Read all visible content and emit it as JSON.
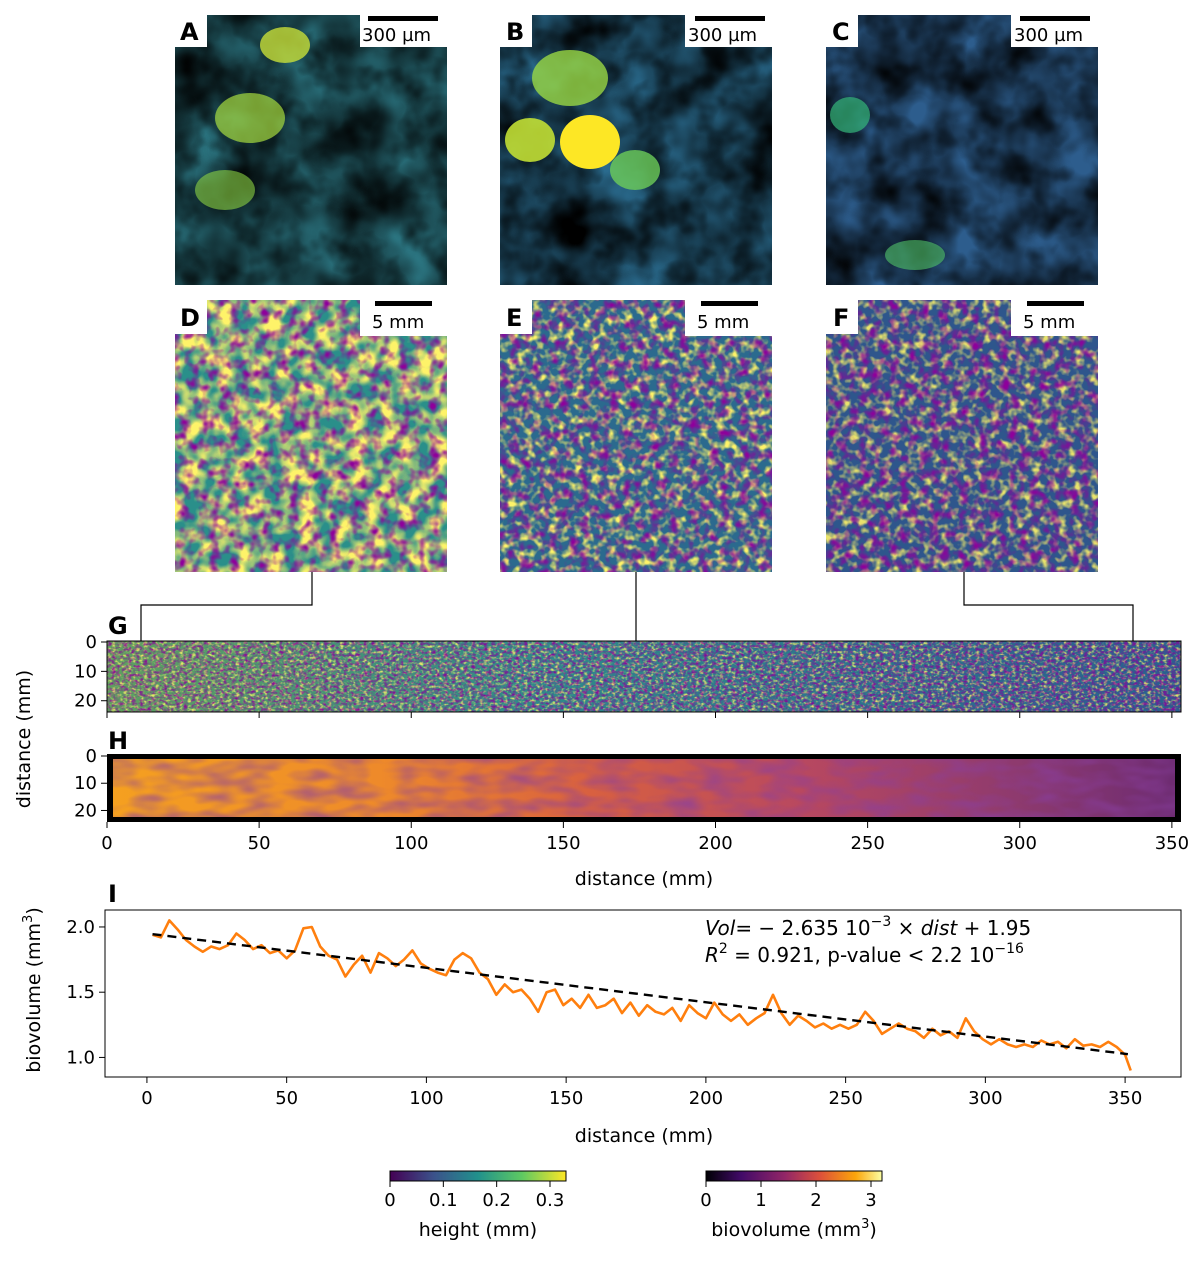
{
  "panels": {
    "A": {
      "label": "A",
      "scalebar": "300 µm"
    },
    "B": {
      "label": "B",
      "scalebar": "300 µm"
    },
    "C": {
      "label": "C",
      "scalebar": "300 µm"
    },
    "D": {
      "label": "D",
      "scalebar": "5 mm"
    },
    "E": {
      "label": "E",
      "scalebar": "5 mm"
    },
    "F": {
      "label": "F",
      "scalebar": "5 mm"
    },
    "G": {
      "label": "G"
    },
    "H": {
      "label": "H"
    },
    "I": {
      "label": "I"
    }
  },
  "strips": {
    "ylabel": "distance (mm)",
    "xlabel": "distance (mm)",
    "yticks": [
      "0",
      "10",
      "20"
    ],
    "xticks": [
      "0",
      "50",
      "100",
      "150",
      "200",
      "250",
      "300",
      "350"
    ]
  },
  "colorbars": {
    "height": {
      "label": "height (mm)",
      "ticks": [
        "0",
        "0.1",
        "0.2",
        "0.3"
      ],
      "range": [
        0,
        0.33
      ]
    },
    "biovolume": {
      "label": "biovolume (mm",
      "label_sup": "3",
      "label_end": ")",
      "ticks": [
        "0",
        "1",
        "2",
        "3"
      ],
      "range": [
        0,
        3.2
      ]
    }
  },
  "colors": {
    "viridis_low": "#440154",
    "viridis_mid": "#21918c",
    "viridis_high": "#fde725",
    "inferno_low": "#000004",
    "inferno_mid": "#bc3754",
    "inferno_high": "#fcffa4",
    "series": "#ff7f0e",
    "fit": "#000000"
  },
  "chart_data": {
    "type": "line",
    "title": "",
    "xlabel": "distance (mm)",
    "ylabel": "biovolume (mm",
    "ylabel_sup": "3",
    "ylabel_end": ")",
    "xlim": [
      -15,
      370
    ],
    "ylim": [
      0.85,
      2.13
    ],
    "xticks": [
      "0",
      "50",
      "100",
      "150",
      "200",
      "250",
      "300",
      "350"
    ],
    "yticks": [
      "1.0",
      "1.5",
      "2.0"
    ],
    "series": [
      {
        "name": "biovolume",
        "x": [
          2,
          5,
          8,
          11,
          14,
          17,
          20,
          23,
          26,
          29,
          32,
          35,
          38,
          41,
          44,
          47,
          50,
          53,
          56,
          59,
          62,
          65,
          68,
          71,
          74,
          77,
          80,
          83,
          86,
          89,
          92,
          95,
          98,
          101,
          104,
          107,
          110,
          113,
          116,
          119,
          122,
          125,
          128,
          131,
          134,
          137,
          140,
          143,
          146,
          149,
          152,
          155,
          158,
          161,
          164,
          167,
          170,
          173,
          176,
          179,
          182,
          185,
          188,
          191,
          194,
          197,
          200,
          203,
          206,
          209,
          212,
          215,
          218,
          221,
          224,
          227,
          230,
          233,
          236,
          239,
          242,
          245,
          248,
          251,
          254,
          257,
          260,
          263,
          266,
          269,
          272,
          275,
          278,
          281,
          284,
          287,
          290,
          293,
          296,
          299,
          302,
          305,
          308,
          311,
          314,
          317,
          320,
          323,
          326,
          329,
          332,
          335,
          338,
          341,
          344,
          347,
          350,
          352
        ],
        "values": [
          1.94,
          1.92,
          2.05,
          1.98,
          1.9,
          1.85,
          1.81,
          1.85,
          1.83,
          1.86,
          1.95,
          1.9,
          1.83,
          1.86,
          1.8,
          1.82,
          1.76,
          1.82,
          1.99,
          2.0,
          1.85,
          1.78,
          1.75,
          1.62,
          1.71,
          1.78,
          1.65,
          1.8,
          1.76,
          1.7,
          1.75,
          1.82,
          1.72,
          1.68,
          1.65,
          1.63,
          1.75,
          1.8,
          1.76,
          1.65,
          1.6,
          1.48,
          1.56,
          1.5,
          1.52,
          1.45,
          1.35,
          1.5,
          1.52,
          1.4,
          1.45,
          1.38,
          1.48,
          1.38,
          1.4,
          1.45,
          1.34,
          1.42,
          1.32,
          1.4,
          1.35,
          1.33,
          1.38,
          1.28,
          1.4,
          1.34,
          1.3,
          1.42,
          1.33,
          1.28,
          1.33,
          1.25,
          1.3,
          1.34,
          1.48,
          1.34,
          1.25,
          1.32,
          1.28,
          1.23,
          1.26,
          1.22,
          1.25,
          1.22,
          1.25,
          1.35,
          1.28,
          1.18,
          1.22,
          1.26,
          1.22,
          1.2,
          1.15,
          1.22,
          1.17,
          1.2,
          1.15,
          1.3,
          1.2,
          1.14,
          1.1,
          1.14,
          1.1,
          1.08,
          1.1,
          1.08,
          1.13,
          1.1,
          1.12,
          1.07,
          1.14,
          1.09,
          1.1,
          1.08,
          1.12,
          1.08,
          1.02,
          0.9
        ]
      },
      {
        "name": "fit",
        "x": [
          2,
          351
        ],
        "values": [
          1.945,
          1.025
        ]
      }
    ],
    "annotations": {
      "eq_left": "Vol",
      "eq_mid": "= − 2.635 10",
      "eq_exp": "−3",
      "eq_times": " × ",
      "eq_dist": "dist",
      "eq_end": " + 1.95",
      "r2_left": "R",
      "r2_sup": "2",
      "r2_rest": " = 0.921, p-value < 2.2 10",
      "r2_exp": "−16"
    }
  }
}
